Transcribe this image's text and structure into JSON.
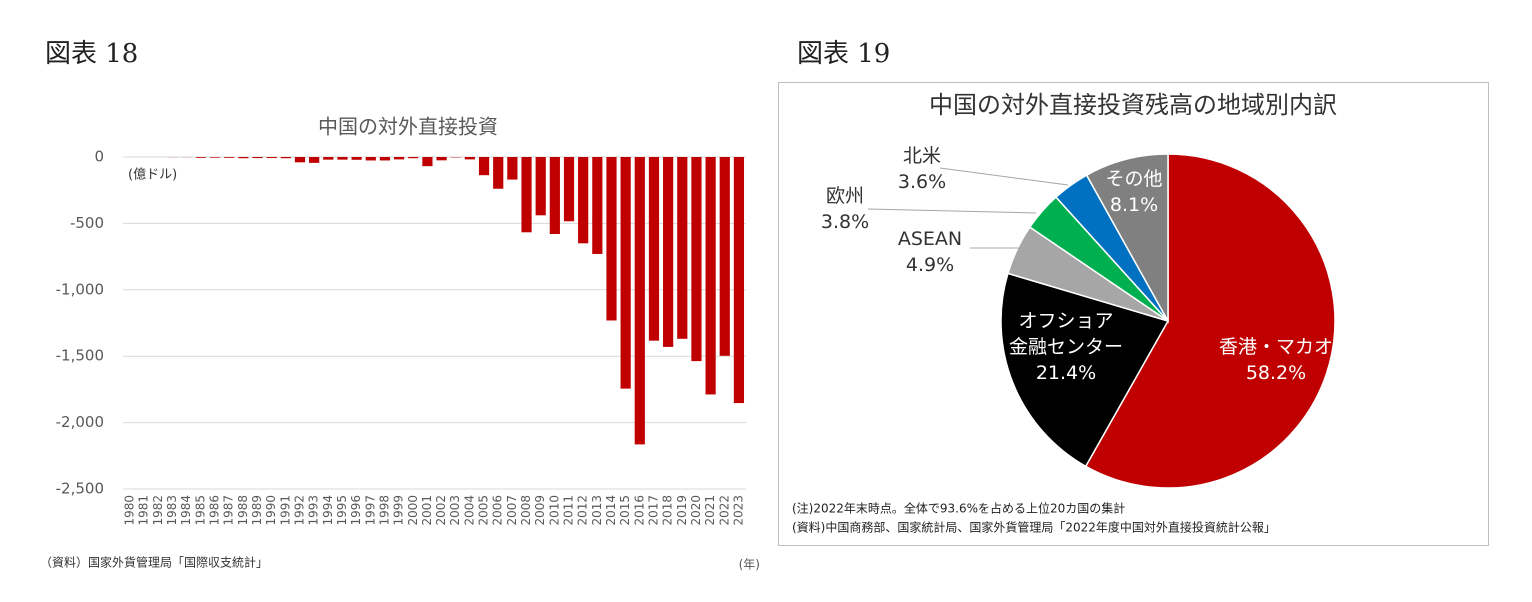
{
  "chart_data": [
    {
      "type": "bar",
      "figure_label": "図表 18",
      "title": "中国の対外直接投資",
      "y_unit": "(億ドル)",
      "x_unit": "(年)",
      "source": "（資料）国家外貨管理局「国際収支統計」",
      "categories": [
        "1980",
        "1981",
        "1982",
        "1983",
        "1984",
        "1985",
        "1986",
        "1987",
        "1988",
        "1989",
        "1990",
        "1991",
        "1992",
        "1993",
        "1994",
        "1995",
        "1996",
        "1997",
        "1998",
        "1999",
        "2000",
        "2001",
        "2002",
        "2003",
        "2004",
        "2005",
        "2006",
        "2007",
        "2008",
        "2009",
        "2010",
        "2011",
        "2012",
        "2013",
        "2014",
        "2015",
        "2016",
        "2017",
        "2018",
        "2019",
        "2020",
        "2021",
        "2022",
        "2023"
      ],
      "values": [
        0,
        0,
        0,
        -1,
        -1,
        -6,
        -5,
        -6,
        -9,
        -8,
        -8,
        -9,
        -40,
        -44,
        -20,
        -20,
        -21,
        -26,
        -26,
        -18,
        -9,
        -69,
        -25,
        -3,
        -18,
        -137,
        -239,
        -170,
        -567,
        -439,
        -580,
        -484,
        -650,
        -730,
        -1231,
        -1744,
        -2164,
        -1383,
        -1430,
        -1369,
        -1537,
        -1788,
        -1497,
        -1853
      ],
      "color": "#c00000",
      "ylim": [
        -2500,
        0
      ],
      "yticks": [
        0,
        -500,
        {
          "value": -1000,
          "label": "-1,000"
        },
        {
          "value": -1500,
          "label": "-1,500"
        },
        {
          "value": -2000,
          "label": "-2,000"
        },
        {
          "value": -2500,
          "label": "-2,500"
        }
      ],
      "grid": true
    },
    {
      "type": "pie",
      "figure_label": "図表 19",
      "title": "中国の対外直接投資残高の地域別内訳",
      "categories": [
        "香港・マカオ",
        "オフショア\n金融センター",
        "ASEAN",
        "欧州",
        "北米",
        "その他"
      ],
      "values": [
        58.2,
        21.4,
        4.9,
        3.8,
        3.6,
        8.1
      ],
      "value_labels": [
        "58.2%",
        "21.4%",
        "4.9%",
        "3.8%",
        "3.6%",
        "8.1%"
      ],
      "colors": [
        "#c00000",
        "#000000",
        "#a6a6a6",
        "#00b050",
        "#0070c0",
        "#808080"
      ],
      "notes": [
        "(注)2022年末時点。全体で93.6%を占める上位20カ国の集計",
        "(資料)中国商務部、国家統計局、国家外貨管理局「2022年度中国対外直接投資統計公報」"
      ]
    }
  ]
}
